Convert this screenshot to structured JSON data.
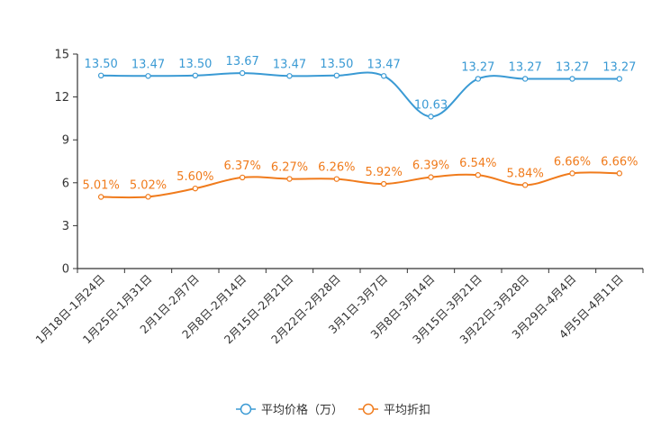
{
  "chart_data": {
    "type": "line",
    "categories": [
      "1月18日-1月24日",
      "1月25日-1月31日",
      "2月1日-2月7日",
      "2月8日-2月14日",
      "2月15日-2月21日",
      "2月22日-2月28日",
      "3月1日-3月7日",
      "3月8日-3月14日",
      "3月15日-3月21日",
      "3月22日-3月28日",
      "3月29日-4月4日",
      "4月5日-4月11日"
    ],
    "series": [
      {
        "name": "平均价格（万）",
        "color": "#3a9ad4",
        "values": [
          13.5,
          13.47,
          13.5,
          13.67,
          13.47,
          13.5,
          13.47,
          10.63,
          13.27,
          13.27,
          13.27,
          13.27
        ],
        "labels": [
          "13.50",
          "13.47",
          "13.50",
          "13.67",
          "13.47",
          "13.50",
          "13.47",
          "10.63",
          "13.27",
          "13.27",
          "13.27",
          "13.27"
        ]
      },
      {
        "name": "平均折扣",
        "color": "#f07b1c",
        "values": [
          5.01,
          5.02,
          5.6,
          6.37,
          6.27,
          6.26,
          5.92,
          6.39,
          6.54,
          5.84,
          6.66,
          6.66
        ],
        "labels": [
          "5.01%",
          "5.02%",
          "5.60%",
          "6.37%",
          "6.27%",
          "6.26%",
          "5.92%",
          "6.39%",
          "6.54%",
          "5.84%",
          "6.66%",
          "6.66%"
        ]
      }
    ],
    "yticks": [
      "0",
      "3",
      "6",
      "9",
      "12",
      "15"
    ],
    "ylim": [
      0,
      15
    ],
    "title": "",
    "xlabel": "",
    "ylabel": "",
    "grid": false,
    "legend": "bottom-center"
  }
}
